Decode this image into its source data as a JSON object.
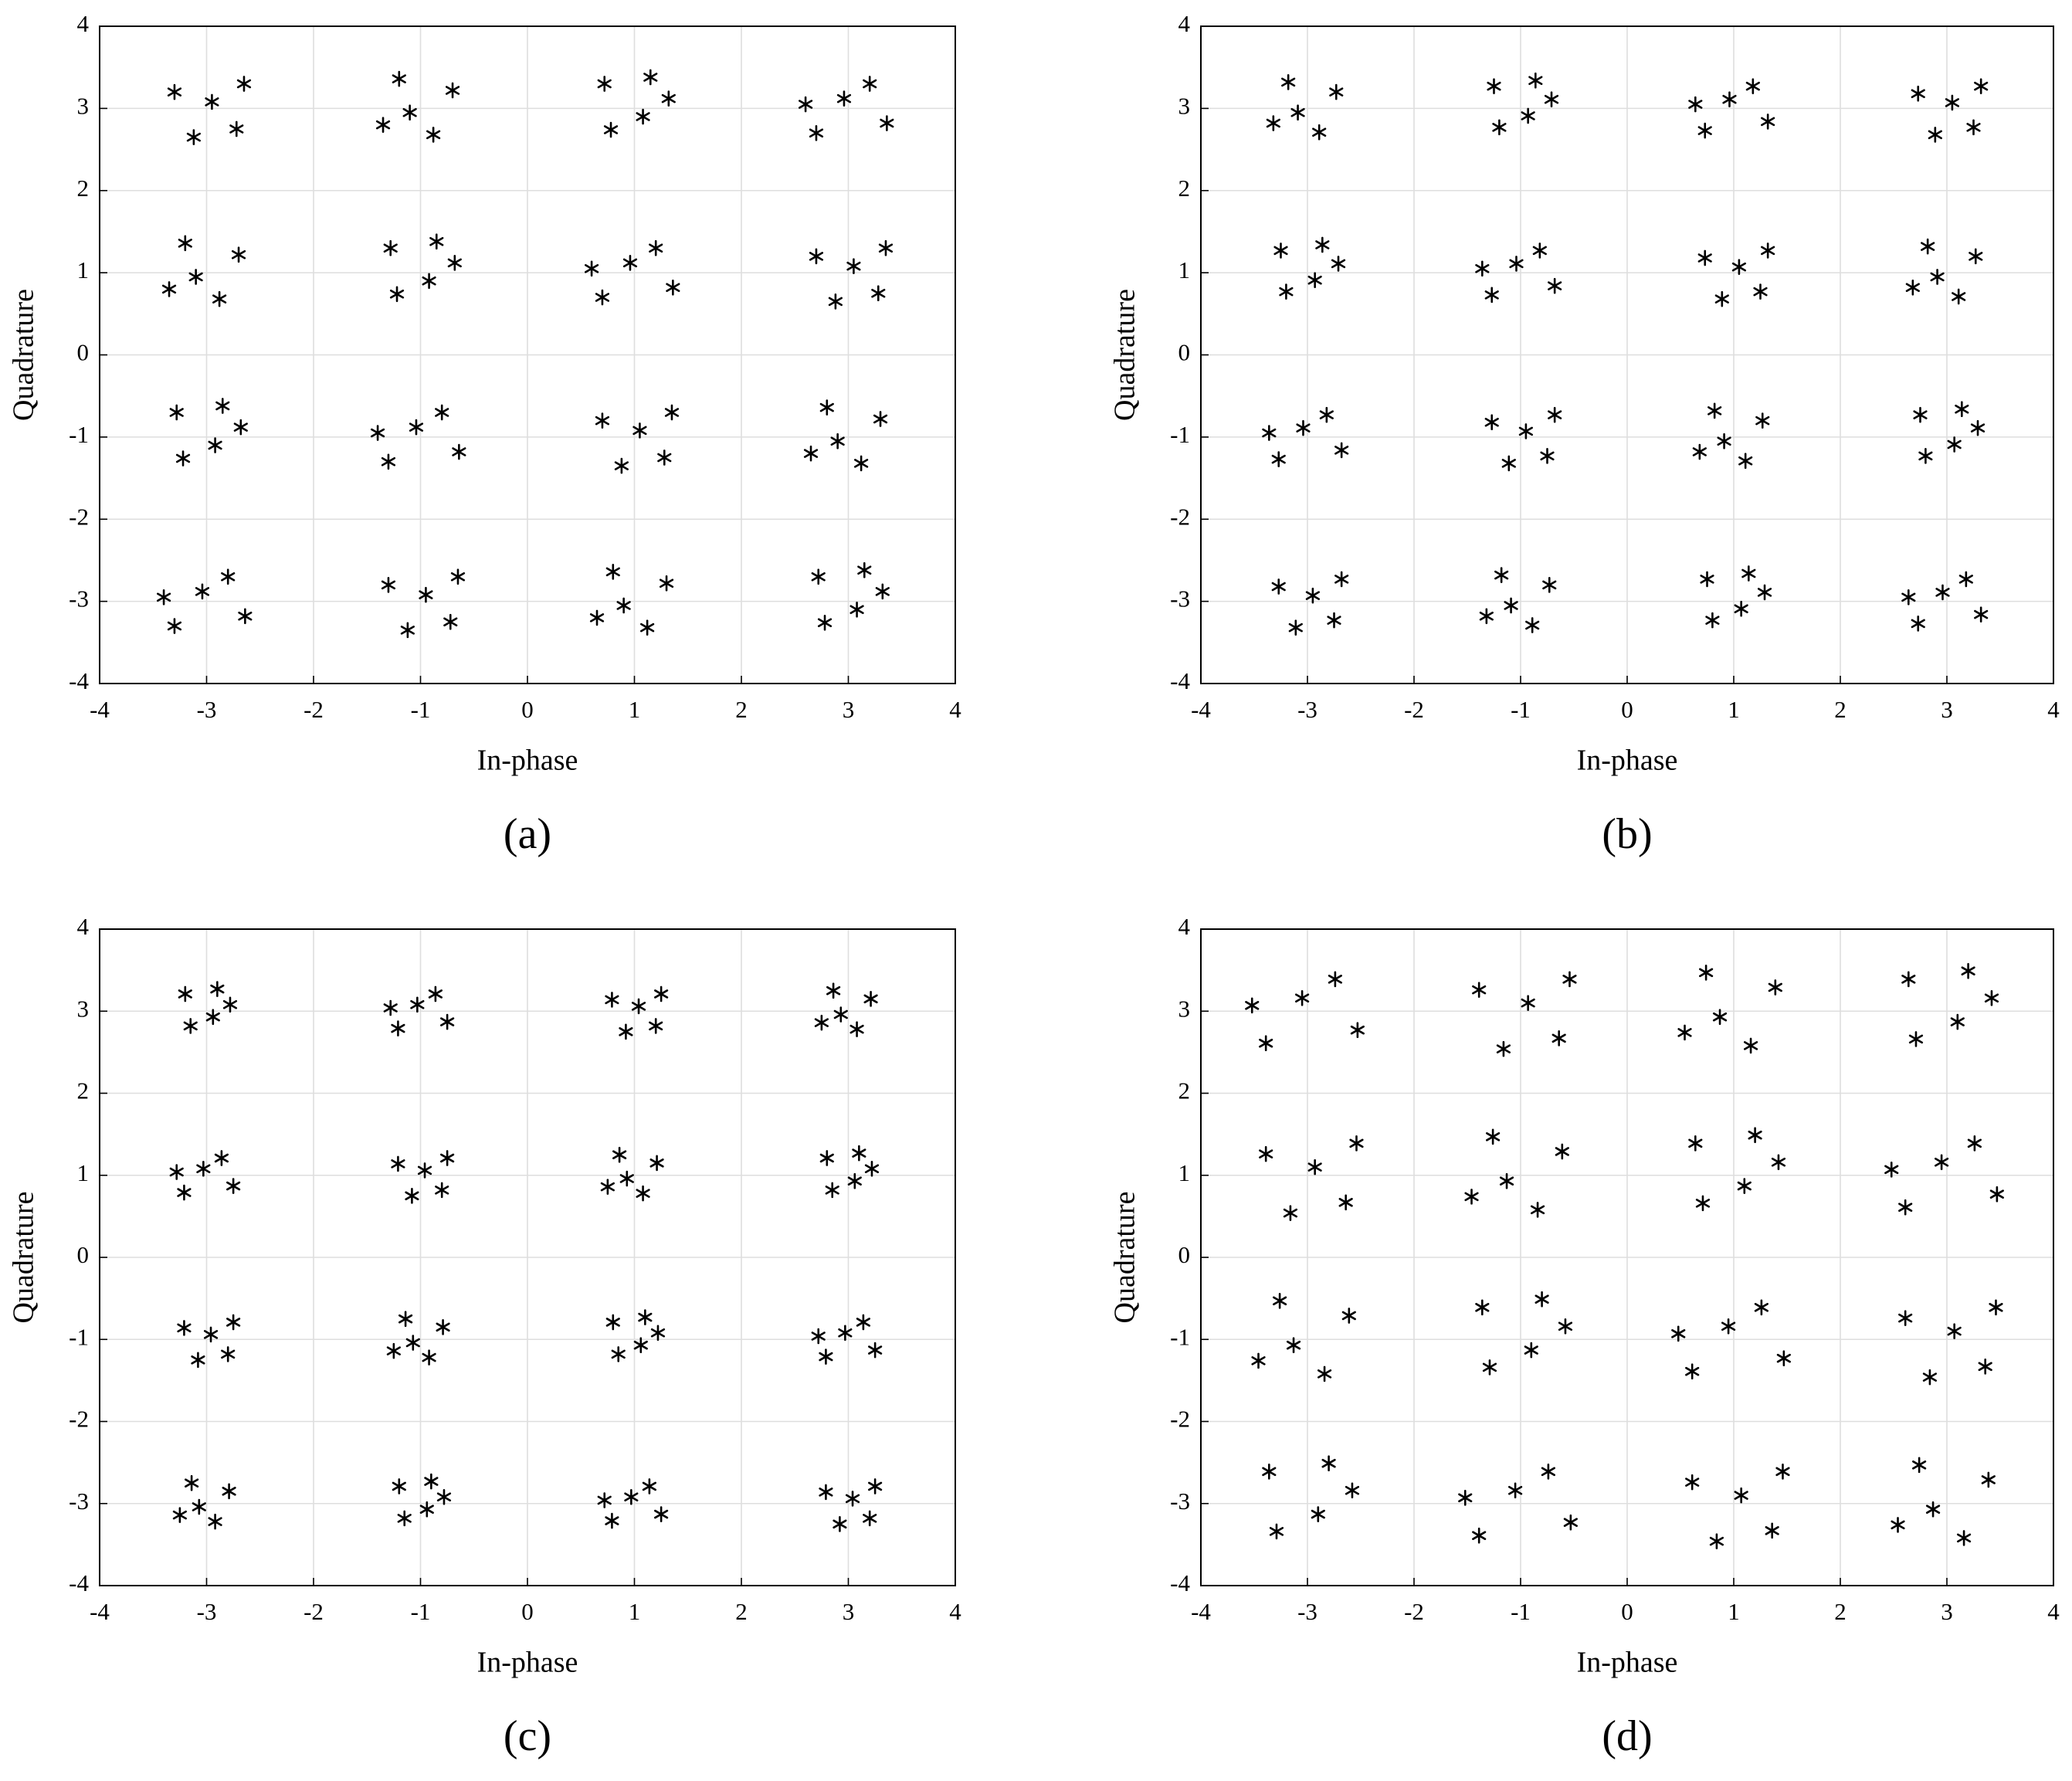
{
  "chart_data": [
    {
      "type": "scatter",
      "caption": "(a)",
      "x_label": "In-phase",
      "y_label": "Quadrature",
      "xlim": [
        -4,
        4
      ],
      "ylim": [
        -4,
        4
      ],
      "xticks": [
        -4,
        -3,
        -2,
        -1,
        0,
        1,
        2,
        3,
        4
      ],
      "yticks": [
        -4,
        -3,
        -2,
        -1,
        0,
        1,
        2,
        3,
        4
      ],
      "grid": true,
      "marker": "*",
      "color": "#000000",
      "x": [
        -2.95,
        -3.3,
        -2.72,
        -3.12,
        -2.65,
        -1.1,
        -0.7,
        -1.35,
        -0.88,
        -1.2,
        1.08,
        0.72,
        1.32,
        0.78,
        1.15,
        2.96,
        3.36,
        2.7,
        3.2,
        2.6,
        -3.1,
        -2.7,
        -3.35,
        -2.88,
        -3.2,
        -0.92,
        -1.28,
        -0.68,
        -1.22,
        -0.85,
        0.96,
        1.36,
        0.7,
        1.2,
        0.6,
        3.05,
        2.7,
        3.28,
        2.88,
        3.35,
        -2.92,
        -3.28,
        -2.68,
        -3.22,
        -2.85,
        -1.04,
        -0.64,
        -1.3,
        -0.8,
        -1.4,
        1.05,
        0.7,
        1.28,
        0.88,
        1.35,
        2.9,
        3.3,
        2.65,
        3.12,
        2.8,
        -3.04,
        -2.64,
        -3.3,
        -2.8,
        -3.4,
        -0.95,
        -1.3,
        -0.72,
        -1.12,
        -0.65,
        0.9,
        1.3,
        0.65,
        1.12,
        0.8,
        3.08,
        2.72,
        3.32,
        2.78,
        3.15
      ],
      "values": [
        3.08,
        3.2,
        2.75,
        2.65,
        3.3,
        2.95,
        3.22,
        2.8,
        2.68,
        3.36,
        2.9,
        3.3,
        3.12,
        2.74,
        3.38,
        3.12,
        2.82,
        2.7,
        3.3,
        3.05,
        0.95,
        1.22,
        0.8,
        0.68,
        1.36,
        0.9,
        1.3,
        1.12,
        0.74,
        1.38,
        1.12,
        0.82,
        0.7,
        1.3,
        1.05,
        1.08,
        1.2,
        0.75,
        0.65,
        1.3,
        -1.1,
        -0.7,
        -0.88,
        -1.26,
        -0.62,
        -0.88,
        -1.18,
        -1.3,
        -0.7,
        -0.95,
        -0.92,
        -0.8,
        -1.25,
        -1.35,
        -0.7,
        -1.05,
        -0.78,
        -1.2,
        -1.32,
        -0.64,
        -2.88,
        -3.18,
        -3.3,
        -2.7,
        -2.95,
        -2.92,
        -2.8,
        -3.25,
        -3.35,
        -2.7,
        -3.05,
        -2.78,
        -3.2,
        -3.32,
        -2.64,
        -3.1,
        -2.7,
        -2.88,
        -3.26,
        -2.62
      ]
    },
    {
      "type": "scatter",
      "caption": "(b)",
      "x_label": "In-phase",
      "y_label": "Quadrature",
      "xlim": [
        -4,
        4
      ],
      "ylim": [
        -4,
        4
      ],
      "xticks": [
        -4,
        -3,
        -2,
        -1,
        0,
        1,
        2,
        3,
        4
      ],
      "yticks": [
        -4,
        -3,
        -2,
        -1,
        0,
        1,
        2,
        3,
        4
      ],
      "grid": true,
      "marker": "*",
      "color": "#000000",
      "x": [
        -3.09,
        -2.73,
        -3.32,
        -2.89,
        -3.18,
        -0.93,
        -1.25,
        -0.71,
        -1.2,
        -0.86,
        0.96,
        1.32,
        0.73,
        1.18,
        0.64,
        3.05,
        2.73,
        3.25,
        2.89,
        3.32,
        -2.93,
        -3.25,
        -2.71,
        -3.2,
        -2.86,
        -1.04,
        -0.68,
        -1.27,
        -0.82,
        -1.36,
        1.05,
        0.73,
        1.25,
        0.89,
        1.32,
        2.91,
        3.27,
        2.68,
        3.11,
        2.82,
        -3.04,
        -2.68,
        -3.27,
        -2.82,
        -3.36,
        -0.95,
        -1.27,
        -0.75,
        -1.11,
        -0.68,
        0.91,
        1.27,
        0.68,
        1.11,
        0.82,
        3.07,
        2.75,
        3.29,
        2.8,
        3.14,
        -2.95,
        -3.27,
        -2.75,
        -3.11,
        -2.68,
        -1.09,
        -0.73,
        -1.32,
        -0.89,
        -1.18,
        1.07,
        0.75,
        1.29,
        0.8,
        1.14,
        2.96,
        3.32,
        2.73,
        3.18,
        2.64
      ],
      "values": [
        2.95,
        3.2,
        2.82,
        2.71,
        3.32,
        2.91,
        3.27,
        3.11,
        2.77,
        3.34,
        3.11,
        2.84,
        2.73,
        3.27,
        3.05,
        3.07,
        3.18,
        2.77,
        2.68,
        3.27,
        0.91,
        1.27,
        1.11,
        0.77,
        1.34,
        1.11,
        0.84,
        0.73,
        1.27,
        1.05,
        1.07,
        1.18,
        0.77,
        0.68,
        1.27,
        0.95,
        1.2,
        0.82,
        0.71,
        1.32,
        -0.89,
        -1.16,
        -1.27,
        -0.73,
        -0.95,
        -0.93,
        -0.82,
        -1.23,
        -1.32,
        -0.73,
        -1.05,
        -0.8,
        -1.18,
        -1.29,
        -0.68,
        -1.09,
        -0.73,
        -0.89,
        -1.23,
        -0.66,
        -2.93,
        -2.82,
        -3.23,
        -3.32,
        -2.73,
        -3.05,
        -2.8,
        -3.18,
        -3.29,
        -2.68,
        -3.09,
        -2.73,
        -2.89,
        -3.23,
        -2.66,
        -2.89,
        -3.16,
        -3.27,
        -2.73,
        -2.95
      ]
    },
    {
      "type": "scatter",
      "caption": "(c)",
      "x_label": "In-phase",
      "y_label": "Quadrature",
      "xlim": [
        -4,
        4
      ],
      "ylim": [
        -4,
        4
      ],
      "xticks": [
        -4,
        -3,
        -2,
        -1,
        0,
        1,
        2,
        3,
        4
      ],
      "yticks": [
        -4,
        -3,
        -2,
        -1,
        0,
        1,
        2,
        3,
        4
      ],
      "grid": true,
      "marker": "*",
      "color": "#000000",
      "x": [
        -2.94,
        -3.2,
        -2.78,
        -3.15,
        -2.9,
        -1.03,
        -0.75,
        -1.21,
        -0.86,
        -1.28,
        1.04,
        0.79,
        1.2,
        0.92,
        1.25,
        2.93,
        3.21,
        2.75,
        3.08,
        2.86,
        -3.03,
        -2.75,
        -3.21,
        -2.86,
        -3.28,
        -0.96,
        -1.21,
        -0.8,
        -1.08,
        -0.75,
        0.93,
        1.21,
        0.75,
        1.08,
        0.86,
        3.06,
        2.8,
        3.22,
        2.85,
        3.1,
        -2.96,
        -3.21,
        -2.8,
        -3.08,
        -2.75,
        -1.07,
        -0.79,
        -1.25,
        -0.92,
        -1.14,
        1.06,
        0.8,
        1.22,
        0.85,
        1.1,
        2.97,
        3.25,
        2.79,
        3.14,
        2.72,
        -3.07,
        -2.79,
        -3.25,
        -2.92,
        -3.14,
        -0.94,
        -1.2,
        -0.78,
        -1.15,
        -0.9,
        0.97,
        1.25,
        0.79,
        1.14,
        0.72,
        3.04,
        2.79,
        3.2,
        2.92,
        3.25
      ],
      "values": [
        2.93,
        3.21,
        3.08,
        2.82,
        3.27,
        3.08,
        2.87,
        2.79,
        3.21,
        3.04,
        3.06,
        3.14,
        2.82,
        2.75,
        3.21,
        2.96,
        3.15,
        2.86,
        2.78,
        3.25,
        1.08,
        0.87,
        0.79,
        1.21,
        1.04,
        1.06,
        1.14,
        0.82,
        0.75,
        1.21,
        0.96,
        1.15,
        0.86,
        0.78,
        1.25,
        0.93,
        1.21,
        1.08,
        0.82,
        1.27,
        -0.94,
        -0.86,
        -1.18,
        -1.25,
        -0.79,
        -1.04,
        -0.85,
        -1.14,
        -1.22,
        -0.75,
        -1.07,
        -0.79,
        -0.92,
        -1.18,
        -0.73,
        -0.92,
        -1.13,
        -1.21,
        -0.79,
        -0.96,
        -3.04,
        -2.85,
        -3.14,
        -3.22,
        -2.75,
        -3.07,
        -2.79,
        -2.92,
        -3.18,
        -2.73,
        -2.92,
        -3.13,
        -3.21,
        -2.79,
        -2.96,
        -2.94,
        -2.86,
        -3.18,
        -3.25,
        -2.79
      ]
    },
    {
      "type": "scatter",
      "caption": "(d)",
      "x_label": "In-phase",
      "y_label": "Quadrature",
      "xlim": [
        -4,
        4
      ],
      "ylim": [
        -4,
        4
      ],
      "xticks": [
        -4,
        -3,
        -2,
        -1,
        0,
        1,
        2,
        3,
        4
      ],
      "yticks": [
        -4,
        -3,
        -2,
        -1,
        0,
        1,
        2,
        3,
        4
      ],
      "grid": true,
      "marker": "*",
      "color": "#000000",
      "x": [
        -3.05,
        -2.53,
        -3.39,
        -2.74,
        -3.52,
        -0.93,
        -1.39,
        -0.64,
        -1.16,
        -0.54,
        0.87,
        1.39,
        0.54,
        1.16,
        0.74,
        3.1,
        2.64,
        3.42,
        2.71,
        3.2,
        -2.93,
        -3.39,
        -2.64,
        -3.16,
        -2.54,
        -1.13,
        -0.61,
        -1.46,
        -0.84,
        -1.26,
        1.1,
        0.64,
        1.42,
        0.71,
        1.2,
        2.95,
        3.47,
        2.61,
        3.26,
        2.48,
        -3.13,
        -2.61,
        -3.46,
        -2.84,
        -3.26,
        -0.9,
        -1.36,
        -0.58,
        -1.29,
        -0.8,
        0.95,
        1.47,
        0.61,
        1.26,
        0.48,
        3.07,
        2.61,
        3.36,
        2.84,
        3.46,
        -2.9,
        -3.36,
        -2.58,
        -3.29,
        -2.8,
        -1.05,
        -0.53,
        -1.39,
        -0.74,
        -1.52,
        1.07,
        0.61,
        1.36,
        0.84,
        1.46,
        2.87,
        3.39,
        2.54,
        3.16,
        2.74
      ],
      "values": [
        3.16,
        2.77,
        2.61,
        3.39,
        3.07,
        3.1,
        3.26,
        2.67,
        2.54,
        3.39,
        2.93,
        3.29,
        2.74,
        2.58,
        3.47,
        2.87,
        3.39,
        3.16,
        2.66,
        3.49,
        1.1,
        1.26,
        0.67,
        0.54,
        1.39,
        0.93,
        1.29,
        0.74,
        0.58,
        1.47,
        0.87,
        1.39,
        1.16,
        0.66,
        1.49,
        1.16,
        0.77,
        0.61,
        1.39,
        1.07,
        -1.07,
        -0.71,
        -1.26,
        -1.42,
        -0.53,
        -1.13,
        -0.61,
        -0.84,
        -1.34,
        -0.51,
        -0.84,
        -1.23,
        -1.39,
        -0.61,
        -0.93,
        -0.9,
        -0.74,
        -1.33,
        -1.46,
        -0.61,
        -3.13,
        -2.61,
        -2.84,
        -3.34,
        -2.51,
        -2.84,
        -3.23,
        -3.39,
        -2.61,
        -2.93,
        -2.9,
        -2.74,
        -3.33,
        -3.46,
        -2.61,
        -3.07,
        -2.71,
        -3.26,
        -3.42,
        -2.53
      ]
    }
  ]
}
